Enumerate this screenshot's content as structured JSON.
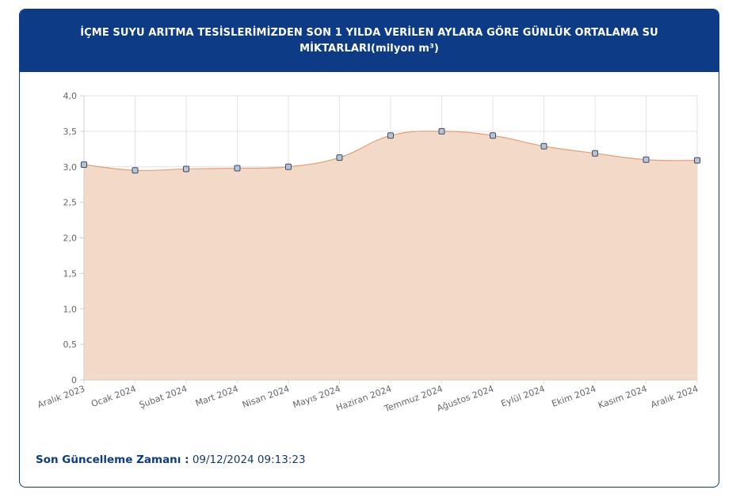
{
  "header": {
    "title": "İÇME SUYU ARITMA TESİSLERİMİZDEN SON 1 YILDA VERİLEN AYLARA GÖRE GÜNLÜK ORTALAMA SU MİKTARLARI(milyon m³)"
  },
  "footer": {
    "label": "Son Güncelleme Zamanı :",
    "value": "09/12/2024 09:13:23"
  },
  "colors": {
    "header_bg": "#0d3b85",
    "area_fill": "#f3d9c7",
    "line": "#e0a07a",
    "point_fill": "#b9c3d6",
    "point_stroke": "#3b4a66"
  },
  "chart_data": {
    "type": "area",
    "categories": [
      "Aralık 2023",
      "Ocak 2024",
      "Şubat 2024",
      "Mart 2024",
      "Nisan 2024",
      "Mayıs 2024",
      "Haziran 2024",
      "Temmuz 2024",
      "Ağustos 2024",
      "Eylül 2024",
      "Ekim 2024",
      "Kasım 2024",
      "Aralık 2024"
    ],
    "values": [
      3.03,
      2.95,
      2.97,
      2.98,
      3.0,
      3.13,
      3.44,
      3.5,
      3.44,
      3.29,
      3.19,
      3.1,
      3.09
    ],
    "yticks": [
      "0",
      "0,5",
      "1,0",
      "1,5",
      "2,0",
      "2,5",
      "3,0",
      "3,5",
      "4,0"
    ],
    "ylim": [
      0,
      4
    ],
    "grid": true,
    "smooth": true
  }
}
